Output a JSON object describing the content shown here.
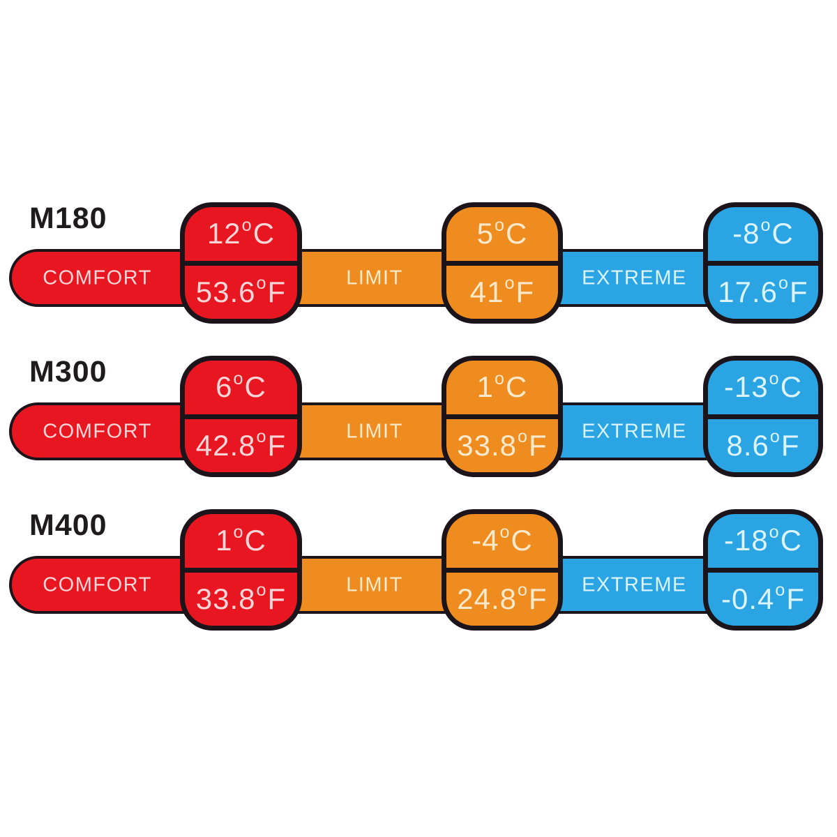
{
  "colors": {
    "red": "#e81620",
    "orange": "#ee8c1f",
    "blue": "#2aa4e2",
    "outline": "#1b141a",
    "red_text": "#f8d6d8",
    "orange_text": "#fbe9cb",
    "blue_text": "#dcf4fd",
    "model_text": "#1d1b1b",
    "background": "#ffffff"
  },
  "units": {
    "degree_symbol": "o",
    "celsius_suffix": "C",
    "fahrenheit_suffix": "F"
  },
  "rows": [
    {
      "model": "M180",
      "segments": {
        "comfort": {
          "label": "COMFORT",
          "celsius": "12",
          "fahrenheit": "53.6"
        },
        "limit": {
          "label": "LIMIT",
          "celsius": "5",
          "fahrenheit": "41"
        },
        "extreme": {
          "label": "EXTREME",
          "celsius": "-8",
          "fahrenheit": "17.6"
        }
      }
    },
    {
      "model": "M300",
      "segments": {
        "comfort": {
          "label": "COMFORT",
          "celsius": "6",
          "fahrenheit": "42.8"
        },
        "limit": {
          "label": "LIMIT",
          "celsius": "1",
          "fahrenheit": "33.8"
        },
        "extreme": {
          "label": "EXTREME",
          "celsius": "-13",
          "fahrenheit": "8.6"
        }
      }
    },
    {
      "model": "M400",
      "segments": {
        "comfort": {
          "label": "COMFORT",
          "celsius": "1",
          "fahrenheit": "33.8"
        },
        "limit": {
          "label": "LIMIT",
          "celsius": "-4",
          "fahrenheit": "24.8"
        },
        "extreme": {
          "label": "EXTREME",
          "celsius": "-18",
          "fahrenheit": "-0.4"
        }
      }
    }
  ]
}
